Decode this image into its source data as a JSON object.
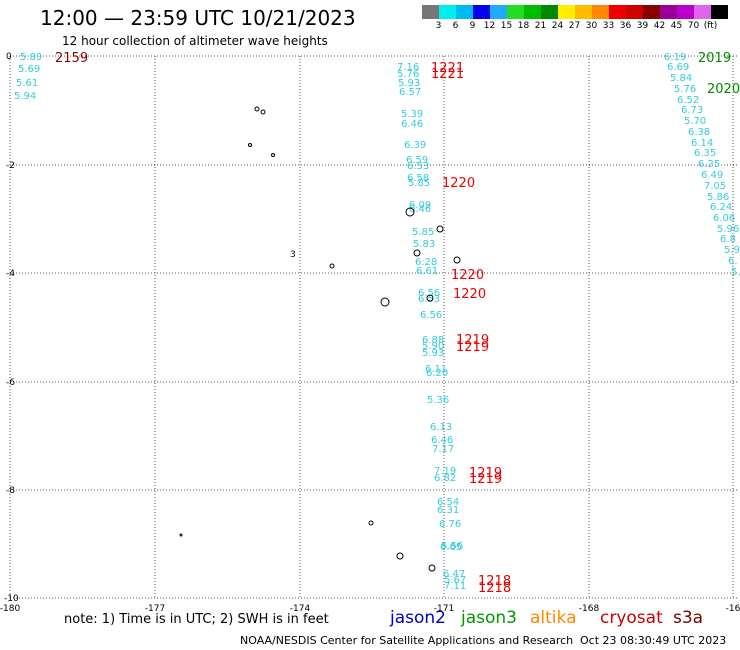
{
  "title": "12:00 — 23:59 UTC 10/21/2023",
  "subtitle": "12 hour collection of altimeter wave heights",
  "colors": {
    "wave": "#33ccdd",
    "time_red": "#ee0000",
    "time_darkred": "#880000",
    "time_green": "#008800",
    "grid": "#555555",
    "jason2": "#0000cc",
    "jason3": "#009900",
    "altika": "#ff8800",
    "cryosat": "#cc0000",
    "s3a": "#770000"
  },
  "scale": {
    "colors": [
      "#777777",
      "#00eeee",
      "#00bbee",
      "#0000ee",
      "#22aaff",
      "#22dd22",
      "#00bb00",
      "#008800",
      "#ffee00",
      "#ffbb00",
      "#ff8800",
      "#ee0000",
      "#cc0000",
      "#880000",
      "#990099",
      "#bb00cc",
      "#dd66ee",
      "#000000"
    ],
    "labels": [
      "3",
      "6",
      "9",
      "12",
      "15",
      "18",
      "21",
      "24",
      "27",
      "30",
      "33",
      "36",
      "39",
      "42",
      "45",
      "70",
      "(ft)"
    ]
  },
  "axes": {
    "x_ticks": [
      "-180",
      "-177",
      "-174",
      "-171",
      "-168",
      "-16"
    ],
    "y_ticks": [
      "0",
      "-2",
      "-4",
      "-6",
      "-8",
      "-10"
    ]
  },
  "time_labels": [
    {
      "text": "2159",
      "color": "darkred"
    },
    {
      "text": "2019",
      "color": "green"
    },
    {
      "text": "2020",
      "color": "green"
    },
    {
      "text": "1221",
      "color": "red"
    },
    {
      "text": "1221",
      "color": "red"
    },
    {
      "text": "1220",
      "color": "red"
    },
    {
      "text": "1220",
      "color": "red"
    },
    {
      "text": "1220",
      "color": "red"
    },
    {
      "text": "1219",
      "color": "red"
    },
    {
      "text": "1219",
      "color": "red"
    },
    {
      "text": "1219",
      "color": "red"
    },
    {
      "text": "1219",
      "color": "red"
    },
    {
      "text": "1218",
      "color": "red"
    },
    {
      "text": "1218",
      "color": "red"
    }
  ],
  "wave_tracks": {
    "left": [
      "5.89",
      "5.69",
      "5.61",
      "5.94"
    ],
    "middle": [
      "7.16",
      "5.76",
      "5.93",
      "6.57",
      "5.39",
      "6.46",
      "6.39",
      "6.59",
      "6.53",
      "6.58",
      "5.85",
      "6.09",
      "6.46",
      "5.85",
      "5.83",
      "6.28",
      "6.61",
      "6.56",
      "6.53",
      "6.56",
      "6.88",
      "5.90",
      "5.93",
      "6.11",
      "6.20",
      "5.36",
      "6.13",
      "6.46",
      "7.17",
      "7.19",
      "6.82",
      "6.54",
      "6.31",
      "6.76",
      "6.65",
      "5.56",
      "6.47",
      "5.67",
      "7.11"
    ],
    "right": [
      "6.19",
      "6.69",
      "5.84",
      "5.76",
      "6.52",
      "6.73",
      "5.70",
      "6.38",
      "6.14",
      "6.35",
      "6.25",
      "6.49",
      "7.05",
      "5.86",
      "6.24",
      "6.06",
      "5.96",
      "6.8",
      "5.9",
      "6.",
      "5."
    ]
  },
  "island_label": "3",
  "note": "note:  1) Time is in UTC;  2) SWH is in feet",
  "legend": [
    "jason2",
    "jason3",
    "altika",
    "cryosat",
    "s3a"
  ],
  "credit": "NOAA/NESDIS Center for Satellite Applications and Research",
  "timestamp": "Oct 23 08:30:49 UTC 2023"
}
